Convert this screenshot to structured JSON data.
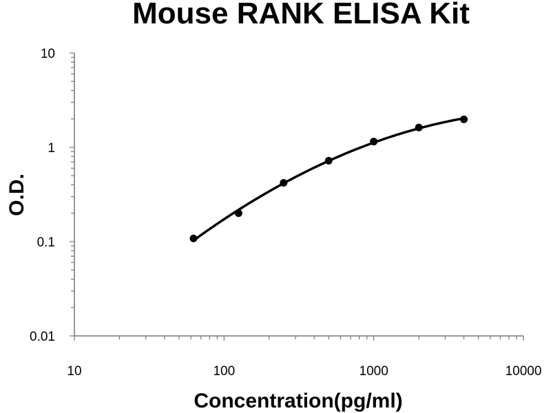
{
  "chart_data": {
    "type": "scatter",
    "title": "Mouse RANK ELISA Kit",
    "xlabel": "Concentration(pg/ml)",
    "ylabel": "O.D.",
    "x_scale": "log",
    "y_scale": "log",
    "xlim": [
      10,
      10000
    ],
    "ylim": [
      0.01,
      10
    ],
    "x_ticks": [
      10,
      100,
      1000,
      10000
    ],
    "x_tick_labels": [
      "10",
      "100",
      "1000",
      "10000"
    ],
    "y_ticks": [
      0.01,
      0.1,
      1,
      10
    ],
    "y_tick_labels": [
      "0.01",
      "0.1",
      "1",
      "10"
    ],
    "grid": false,
    "legend": "none",
    "series": [
      {
        "x": [
          62.5,
          125,
          250,
          500,
          1000,
          2000,
          4000
        ],
        "y": [
          0.108,
          0.2,
          0.42,
          0.72,
          1.15,
          1.62,
          1.98
        ],
        "fit": "smooth-curve"
      }
    ],
    "colors": {
      "line": "#000000",
      "marker": "#000000",
      "axis": "#777777"
    }
  }
}
